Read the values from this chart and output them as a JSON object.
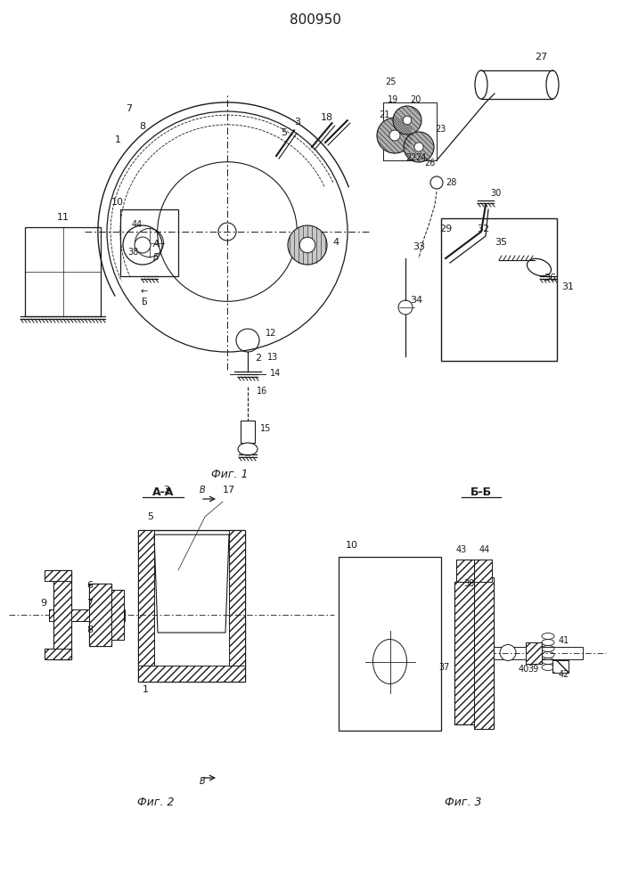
{
  "patent_number": "800950",
  "fig1_caption": "Фиг. 1",
  "fig2_caption": "Фиг. 2",
  "fig3_caption": "Фиг. 3",
  "background_color": "#ffffff",
  "line_color": "#1a1a1a"
}
